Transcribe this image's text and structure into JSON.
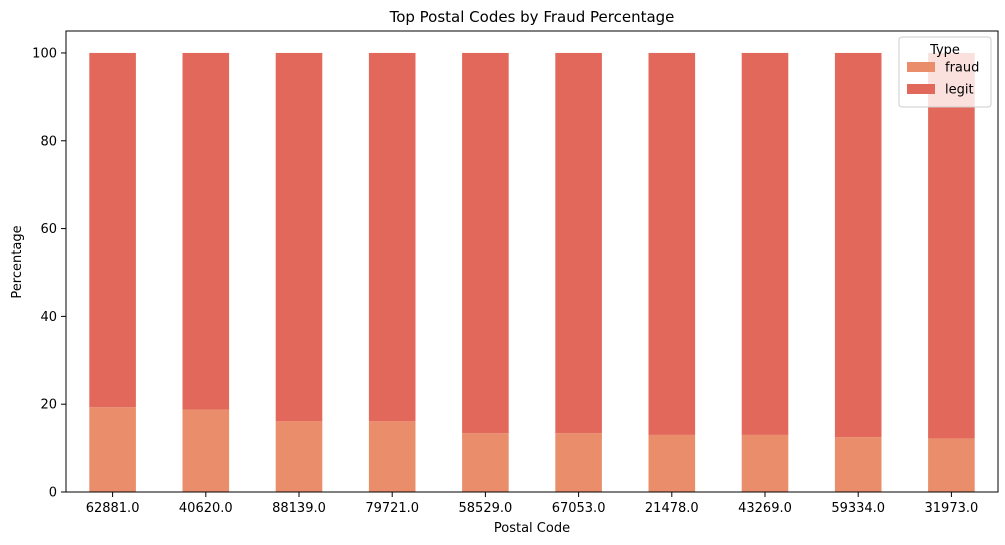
{
  "chart_data": {
    "type": "bar",
    "stacked": true,
    "title": "Top Postal Codes by Fraud Percentage",
    "xlabel": "Postal Code",
    "ylabel": "Percentage",
    "ylim": [
      0,
      105
    ],
    "yticks": [
      0,
      20,
      40,
      60,
      80,
      100
    ],
    "grid": false,
    "categories": [
      "62881.0",
      "40620.0",
      "88139.0",
      "79721.0",
      "58529.0",
      "67053.0",
      "21478.0",
      "43269.0",
      "59334.0",
      "31973.0"
    ],
    "series": [
      {
        "name": "fraud",
        "color": "#E98D6B",
        "values": [
          19.3,
          18.8,
          16.1,
          16.1,
          13.4,
          13.4,
          13.0,
          13.0,
          12.5,
          12.2
        ]
      },
      {
        "name": "legit",
        "color": "#E3685C",
        "values": [
          80.7,
          81.2,
          83.9,
          83.9,
          86.6,
          86.6,
          87.0,
          87.0,
          87.5,
          87.8
        ]
      }
    ],
    "legend": {
      "title": "Type",
      "position": "top-right"
    }
  }
}
